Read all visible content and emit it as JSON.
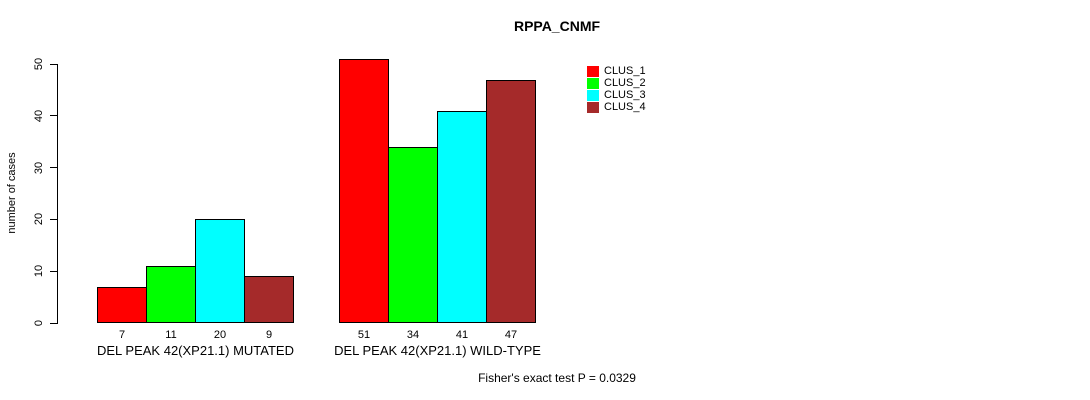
{
  "chart_data": {
    "type": "bar",
    "title": "RPPA_CNMF",
    "ylabel": "number of cases",
    "ylim": [
      0,
      50
    ],
    "yticks": [
      0,
      10,
      20,
      30,
      40,
      50
    ],
    "grid": false,
    "legend_position": "top-right",
    "categories": [
      "DEL PEAK 42(XP21.1) MUTATED",
      "DEL PEAK 42(XP21.1) WILD-TYPE"
    ],
    "series": [
      {
        "name": "CLUS_1",
        "color": "#ff0000",
        "values": [
          7,
          51
        ]
      },
      {
        "name": "CLUS_2",
        "color": "#00ff00",
        "values": [
          11,
          34
        ]
      },
      {
        "name": "CLUS_3",
        "color": "#00ffff",
        "values": [
          20,
          41
        ]
      },
      {
        "name": "CLUS_4",
        "color": "#a52a2a",
        "values": [
          9,
          47
        ]
      }
    ],
    "bar_value_labels": {
      "group1": [
        "7",
        "11",
        "20",
        "9"
      ],
      "group2": [
        "51",
        "34",
        "41",
        "47"
      ]
    }
  },
  "footer": {
    "note": "Fisher's exact test P = 0.0329"
  }
}
